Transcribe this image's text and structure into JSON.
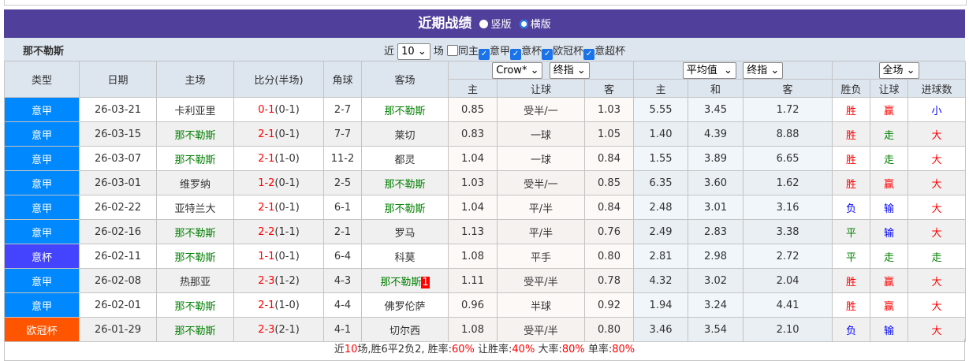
{
  "header": {
    "title": "近期战绩",
    "view_options": [
      {
        "label": "竖版",
        "selected": false
      },
      {
        "label": "横版",
        "selected": true
      }
    ]
  },
  "filter": {
    "team": "那不勒斯",
    "prefix": "近",
    "count": "10",
    "suffix": "场",
    "options": [
      {
        "label": "同主",
        "checked": false
      },
      {
        "label": "意甲",
        "checked": true
      },
      {
        "label": "意杯",
        "checked": true
      },
      {
        "label": "欧冠杯",
        "checked": true
      },
      {
        "label": "意超杯",
        "checked": true
      }
    ]
  },
  "selects": {
    "company": "Crow*",
    "odds_type1": "终指",
    "avg": "平均值",
    "odds_type2": "终指",
    "scope": "全场"
  },
  "columns": {
    "type": "类型",
    "date": "日期",
    "home": "主场",
    "score": "比分(半场)",
    "corner": "角球",
    "away": "客场",
    "home_odds": "主",
    "handicap": "让球",
    "away_odds": "客",
    "eu_home": "主",
    "eu_draw": "和",
    "eu_away": "客",
    "result": "胜负",
    "hc_result": "让球",
    "goals": "进球数"
  },
  "colors": {
    "意甲": "#0088ff",
    "意杯": "#4444ff",
    "欧冠杯": "#ff5500",
    "win": "#ff0000",
    "draw": "#008000",
    "loss": "#0000ff"
  },
  "rows": [
    {
      "type": "意甲",
      "date": "26-03-21",
      "home": "卡利亚里",
      "score": "0-1",
      "half": "(0-1)",
      "corner": "2-7",
      "away": "那不勒斯",
      "h": "0.85",
      "hc": "受半/一",
      "a": "1.03",
      "e1": "5.55",
      "e2": "3.45",
      "e3": "1.72",
      "res": "胜",
      "hcr": "赢",
      "gl": "小"
    },
    {
      "type": "意甲",
      "date": "26-03-15",
      "home": "那不勒斯",
      "score": "2-1",
      "half": "(0-1)",
      "corner": "7-7",
      "away": "莱切",
      "h": "0.83",
      "hc": "一球",
      "a": "1.05",
      "e1": "1.40",
      "e2": "4.39",
      "e3": "8.88",
      "res": "胜",
      "hcr": "走",
      "gl": "大"
    },
    {
      "type": "意甲",
      "date": "26-03-07",
      "home": "那不勒斯",
      "score": "2-1",
      "half": "(1-0)",
      "corner": "11-2",
      "away": "都灵",
      "h": "1.04",
      "hc": "一球",
      "a": "0.84",
      "e1": "1.55",
      "e2": "3.89",
      "e3": "6.65",
      "res": "胜",
      "hcr": "走",
      "gl": "大"
    },
    {
      "type": "意甲",
      "date": "26-03-01",
      "home": "维罗纳",
      "score": "1-2",
      "half": "(0-1)",
      "corner": "2-5",
      "away": "那不勒斯",
      "h": "1.03",
      "hc": "受半/一",
      "a": "0.85",
      "e1": "6.35",
      "e2": "3.60",
      "e3": "1.62",
      "res": "胜",
      "hcr": "赢",
      "gl": "大"
    },
    {
      "type": "意甲",
      "date": "26-02-22",
      "home": "亚特兰大",
      "score": "2-1",
      "half": "(0-1)",
      "corner": "6-1",
      "away": "那不勒斯",
      "h": "1.04",
      "hc": "平/半",
      "a": "0.84",
      "e1": "2.48",
      "e2": "3.01",
      "e3": "3.16",
      "res": "负",
      "hcr": "输",
      "gl": "大"
    },
    {
      "type": "意甲",
      "date": "26-02-16",
      "home": "那不勒斯",
      "score": "2-2",
      "half": "(1-1)",
      "corner": "2-1",
      "away": "罗马",
      "h": "1.13",
      "hc": "平/半",
      "a": "0.76",
      "e1": "2.49",
      "e2": "2.83",
      "e3": "3.38",
      "res": "平",
      "hcr": "输",
      "gl": "大"
    },
    {
      "type": "意杯",
      "date": "26-02-11",
      "home": "那不勒斯",
      "score": "1-1",
      "half": "(0-1)",
      "corner": "6-4",
      "away": "科莫",
      "h": "1.08",
      "hc": "平手",
      "a": "0.80",
      "e1": "2.81",
      "e2": "2.98",
      "e3": "2.72",
      "res": "平",
      "hcr": "走",
      "gl": "走"
    },
    {
      "type": "意甲",
      "date": "26-02-08",
      "home": "热那亚",
      "score": "2-3",
      "half": "(1-2)",
      "corner": "4-3",
      "away": "那不勒斯",
      "badge": "1",
      "h": "1.11",
      "hc": "受平/半",
      "a": "0.78",
      "e1": "4.32",
      "e2": "3.02",
      "e3": "2.04",
      "res": "胜",
      "hcr": "赢",
      "gl": "大"
    },
    {
      "type": "意甲",
      "date": "26-02-01",
      "home": "那不勒斯",
      "score": "2-1",
      "half": "(1-0)",
      "corner": "4-4",
      "away": "佛罗伦萨",
      "h": "0.96",
      "hc": "半球",
      "a": "0.92",
      "e1": "1.94",
      "e2": "3.24",
      "e3": "4.41",
      "res": "胜",
      "hcr": "赢",
      "gl": "大"
    },
    {
      "type": "欧冠杯",
      "date": "26-01-29",
      "home": "那不勒斯",
      "score": "2-3",
      "half": "(2-1)",
      "corner": "4-1",
      "away": "切尔西",
      "h": "1.08",
      "hc": "受平/半",
      "a": "0.80",
      "e1": "3.46",
      "e2": "3.54",
      "e3": "2.10",
      "res": "负",
      "hcr": "输",
      "gl": "大"
    }
  ],
  "footer": {
    "p1": "近",
    "n": "10",
    "p2": "场,胜6平2负2, 胜率:",
    "win_rate": "60%",
    "p3": " 让胜率:",
    "hc_rate": "40%",
    "p4": " 大率:",
    "big_rate": "80%",
    "p5": " 单率:",
    "odd_rate": "80%"
  }
}
